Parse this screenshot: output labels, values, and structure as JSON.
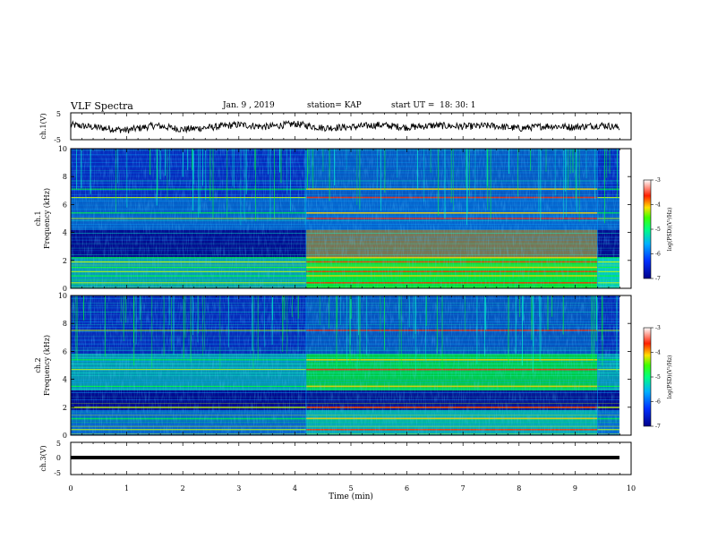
{
  "header": {
    "title": "VLF Spectra",
    "date": "Jan. 9 , 2019",
    "station": "station= KAP",
    "start": "start UT =  18: 30: 1"
  },
  "chart_data": [
    {
      "type": "line",
      "panel": "ch1-waveform",
      "ylabel": "ch.1(V)",
      "ylim": [
        -5,
        5
      ],
      "yticks": [
        "5",
        "-5"
      ],
      "xlim": [
        0,
        10
      ],
      "description_value": "noisy waveform oscillating around 0 V",
      "x": [
        0,
        0.5,
        1,
        1.5,
        2,
        2.5,
        3,
        3.5,
        4,
        4.5,
        5,
        5.5,
        6,
        6.5,
        7,
        7.5,
        8,
        8.5,
        9,
        9.5,
        9.8
      ],
      "y": [
        0.5,
        -0.5,
        -1.5,
        0.3,
        -1.2,
        -0.4,
        0.6,
        -0.2,
        0.9,
        -0.6,
        -0.3,
        0.5,
        -0.4,
        0.3,
        -0.1,
        0.2,
        -0.8,
        0.1,
        -0.3,
        0.4,
        -0.5
      ]
    },
    {
      "type": "heatmap",
      "panel": "ch1-spectrogram",
      "ylabel": "ch.1",
      "ylabel2": "Frequency (kHz)",
      "ylim": [
        0,
        10
      ],
      "yticks": [
        "0",
        "2",
        "4",
        "6",
        "8",
        "10"
      ],
      "xlim": [
        0,
        10
      ],
      "colorbar": {
        "label": "log(PSD)(V²/Hz)",
        "range": [
          -7,
          -3
        ],
        "ticks": [
          "-3",
          "-4",
          "-5",
          "-6",
          "-7"
        ]
      },
      "segments_min": [
        4.2,
        9.4
      ],
      "bands_khz": [
        0.4,
        0.9,
        1.2,
        1.5,
        1.9,
        2.2,
        5.0,
        5.4,
        6.5,
        7.1
      ]
    },
    {
      "type": "heatmap",
      "panel": "ch2-spectrogram",
      "ylabel": "ch.2",
      "ylabel2": "Frequency (kHz)",
      "ylim": [
        0,
        10
      ],
      "yticks": [
        "0",
        "2",
        "4",
        "6",
        "8",
        "10"
      ],
      "xlim": [
        0,
        10
      ],
      "colorbar": {
        "label": "log(PSD)(V²/Hz)",
        "range": [
          -7,
          -3
        ],
        "ticks": [
          "-3",
          "-4",
          "-5",
          "-6",
          "-7"
        ]
      },
      "segments_min": [
        4.2,
        9.4
      ],
      "bands_khz": [
        0.4,
        1.2,
        2.0,
        3.5,
        4.7,
        5.4,
        7.5
      ]
    },
    {
      "type": "line",
      "panel": "ch3-waveform",
      "ylabel": "ch.3(V)",
      "ylim": [
        -5,
        5
      ],
      "yticks": [
        "5",
        "0",
        "-5"
      ],
      "xlim": [
        0,
        10
      ],
      "x": [
        0,
        9.8
      ],
      "y": [
        -1.5,
        -1.5
      ]
    }
  ],
  "xaxis": {
    "label": "Time (min)",
    "ticks": [
      "0",
      "1",
      "2",
      "3",
      "4",
      "5",
      "6",
      "7",
      "8",
      "9",
      "10"
    ]
  },
  "colors": {
    "palette": [
      "#00008a",
      "#0030ff",
      "#00a0ff",
      "#00ffcc",
      "#00ff30",
      "#c8ff00",
      "#ffd000",
      "#ff3000",
      "#ffffff"
    ]
  }
}
